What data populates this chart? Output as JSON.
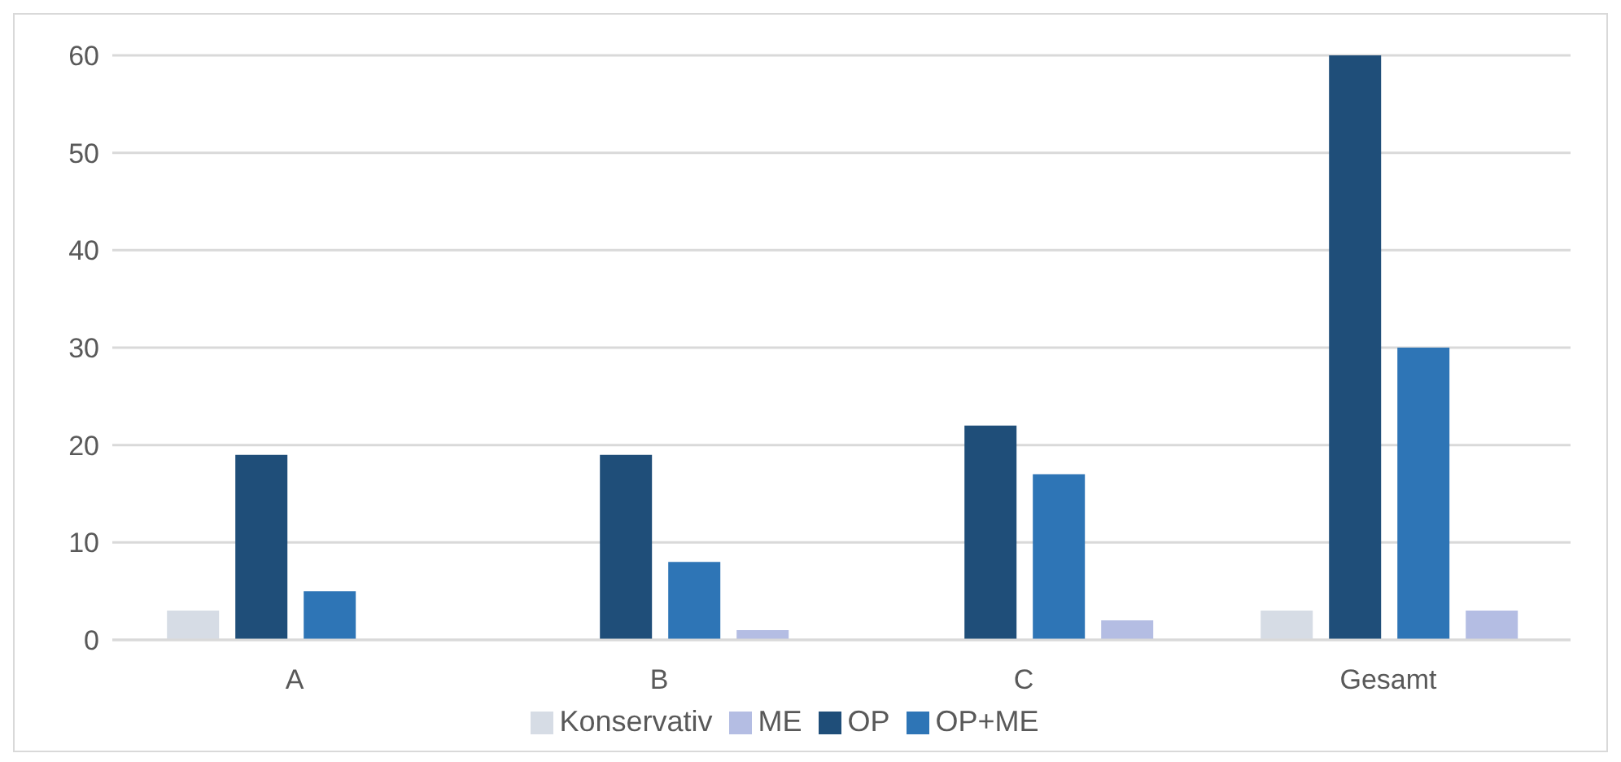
{
  "chart_data": {
    "type": "bar",
    "categories": [
      "A",
      "B",
      "C",
      "Gesamt"
    ],
    "series": [
      {
        "name": "Konservativ",
        "color": "#d6dce5",
        "values": [
          3,
          0,
          0,
          3
        ]
      },
      {
        "name": "OP",
        "color": "#1f4e79",
        "values": [
          19,
          19,
          22,
          60
        ]
      },
      {
        "name": "OP+ME",
        "color": "#2e75b6",
        "values": [
          5,
          8,
          17,
          30
        ]
      },
      {
        "name": "ME",
        "color": "#b4bde3",
        "values": [
          0,
          1,
          2,
          3
        ]
      }
    ],
    "ylim": [
      0,
      60
    ],
    "yticks": [
      0,
      10,
      20,
      30,
      40,
      50,
      60
    ],
    "grid": "y",
    "legend": "bottom"
  }
}
